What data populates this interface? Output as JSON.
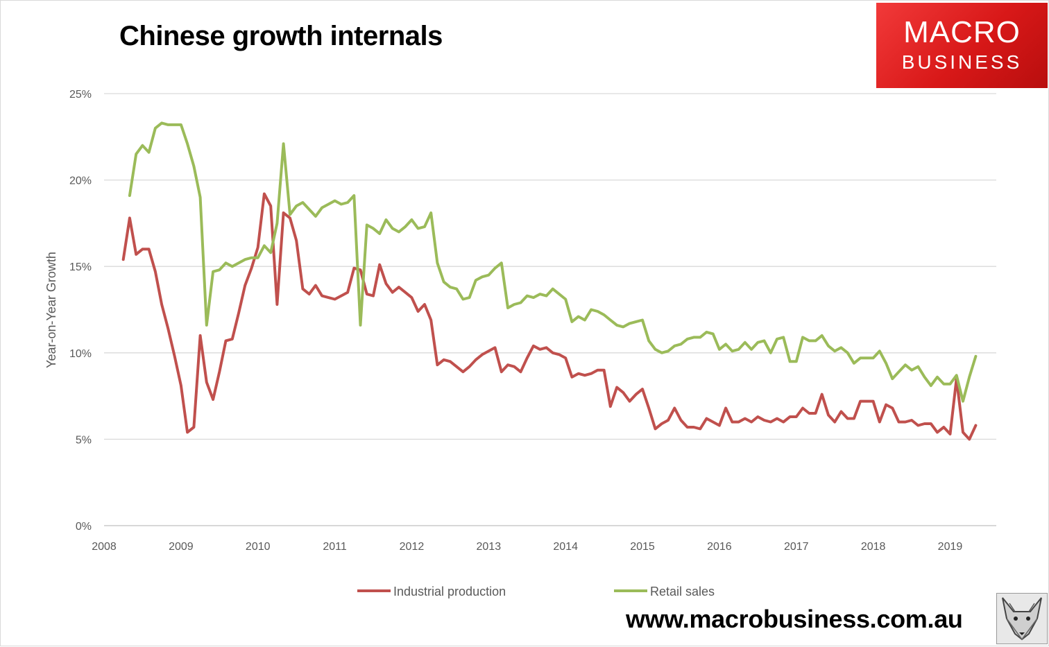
{
  "header": {
    "title": "Chinese growth internals"
  },
  "logo": {
    "line1": "MACRO",
    "line2": "BUSINESS"
  },
  "footer": {
    "website": "www.macrobusiness.com.au"
  },
  "colors": {
    "industrial": "#c0504d",
    "retail": "#9bbb59",
    "grid": "#d9d9d9",
    "text": "#595959"
  },
  "chart_data": {
    "type": "line",
    "title": "Chinese growth internals",
    "xlabel": "",
    "ylabel": "Year-on-Year Growth",
    "xlim": [
      2008,
      2019.6
    ],
    "ylim": [
      0,
      25
    ],
    "x_ticks": [
      2008,
      2009,
      2010,
      2011,
      2012,
      2013,
      2014,
      2015,
      2016,
      2017,
      2018,
      2019
    ],
    "y_ticks": [
      0,
      5,
      10,
      15,
      20,
      25
    ],
    "y_tick_labels": [
      "0%",
      "5%",
      "10%",
      "15%",
      "20%",
      "25%"
    ],
    "grid": "horizontal",
    "legend_position": "bottom",
    "series": [
      {
        "name": "Industrial production",
        "color": "#c0504d",
        "points": [
          [
            2008.25,
            15.4
          ],
          [
            2008.333,
            17.8
          ],
          [
            2008.417,
            15.7
          ],
          [
            2008.5,
            16.0
          ],
          [
            2008.583,
            16.0
          ],
          [
            2008.667,
            14.7
          ],
          [
            2008.75,
            12.8
          ],
          [
            2008.833,
            11.4
          ],
          [
            2008.917,
            9.8
          ],
          [
            2009.0,
            8.1
          ],
          [
            2009.083,
            5.4
          ],
          [
            2009.167,
            5.7
          ],
          [
            2009.25,
            11.0
          ],
          [
            2009.333,
            8.3
          ],
          [
            2009.417,
            7.3
          ],
          [
            2009.5,
            8.9
          ],
          [
            2009.583,
            10.7
          ],
          [
            2009.667,
            10.8
          ],
          [
            2009.75,
            12.3
          ],
          [
            2009.833,
            13.9
          ],
          [
            2009.917,
            14.9
          ],
          [
            2010.0,
            16.1
          ],
          [
            2010.083,
            19.2
          ],
          [
            2010.167,
            18.5
          ],
          [
            2010.25,
            12.8
          ],
          [
            2010.333,
            18.1
          ],
          [
            2010.417,
            17.8
          ],
          [
            2010.5,
            16.5
          ],
          [
            2010.583,
            13.7
          ],
          [
            2010.667,
            13.4
          ],
          [
            2010.75,
            13.9
          ],
          [
            2010.833,
            13.3
          ],
          [
            2010.917,
            13.2
          ],
          [
            2011.0,
            13.1
          ],
          [
            2011.083,
            13.3
          ],
          [
            2011.167,
            13.5
          ],
          [
            2011.25,
            14.9
          ],
          [
            2011.333,
            14.8
          ],
          [
            2011.417,
            13.4
          ],
          [
            2011.5,
            13.3
          ],
          [
            2011.583,
            15.1
          ],
          [
            2011.667,
            14.0
          ],
          [
            2011.75,
            13.5
          ],
          [
            2011.833,
            13.8
          ],
          [
            2011.917,
            13.5
          ],
          [
            2012.0,
            13.2
          ],
          [
            2012.083,
            12.4
          ],
          [
            2012.167,
            12.8
          ],
          [
            2012.25,
            11.9
          ],
          [
            2012.333,
            9.3
          ],
          [
            2012.417,
            9.6
          ],
          [
            2012.5,
            9.5
          ],
          [
            2012.583,
            9.2
          ],
          [
            2012.667,
            8.9
          ],
          [
            2012.75,
            9.2
          ],
          [
            2012.833,
            9.6
          ],
          [
            2012.917,
            9.9
          ],
          [
            2013.0,
            10.1
          ],
          [
            2013.083,
            10.3
          ],
          [
            2013.167,
            8.9
          ],
          [
            2013.25,
            9.3
          ],
          [
            2013.333,
            9.2
          ],
          [
            2013.417,
            8.9
          ],
          [
            2013.5,
            9.7
          ],
          [
            2013.583,
            10.4
          ],
          [
            2013.667,
            10.2
          ],
          [
            2013.75,
            10.3
          ],
          [
            2013.833,
            10.0
          ],
          [
            2013.917,
            9.9
          ],
          [
            2014.0,
            9.7
          ],
          [
            2014.083,
            8.6
          ],
          [
            2014.167,
            8.8
          ],
          [
            2014.25,
            8.7
          ],
          [
            2014.333,
            8.8
          ],
          [
            2014.417,
            9.0
          ],
          [
            2014.5,
            9.0
          ],
          [
            2014.583,
            6.9
          ],
          [
            2014.667,
            8.0
          ],
          [
            2014.75,
            7.7
          ],
          [
            2014.833,
            7.2
          ],
          [
            2014.917,
            7.6
          ],
          [
            2015.0,
            7.9
          ],
          [
            2015.083,
            6.8
          ],
          [
            2015.167,
            5.6
          ],
          [
            2015.25,
            5.9
          ],
          [
            2015.333,
            6.1
          ],
          [
            2015.417,
            6.8
          ],
          [
            2015.5,
            6.1
          ],
          [
            2015.583,
            5.7
          ],
          [
            2015.667,
            5.7
          ],
          [
            2015.75,
            5.6
          ],
          [
            2015.833,
            6.2
          ],
          [
            2015.917,
            6.0
          ],
          [
            2016.0,
            5.8
          ],
          [
            2016.083,
            6.8
          ],
          [
            2016.167,
            6.0
          ],
          [
            2016.25,
            6.0
          ],
          [
            2016.333,
            6.2
          ],
          [
            2016.417,
            6.0
          ],
          [
            2016.5,
            6.3
          ],
          [
            2016.583,
            6.1
          ],
          [
            2016.667,
            6.0
          ],
          [
            2016.75,
            6.2
          ],
          [
            2016.833,
            6.0
          ],
          [
            2016.917,
            6.3
          ],
          [
            2017.0,
            6.3
          ],
          [
            2017.083,
            6.8
          ],
          [
            2017.167,
            6.5
          ],
          [
            2017.25,
            6.5
          ],
          [
            2017.333,
            7.6
          ],
          [
            2017.417,
            6.4
          ],
          [
            2017.5,
            6.0
          ],
          [
            2017.583,
            6.6
          ],
          [
            2017.667,
            6.2
          ],
          [
            2017.75,
            6.2
          ],
          [
            2017.833,
            7.2
          ],
          [
            2017.917,
            7.2
          ],
          [
            2018.0,
            7.2
          ],
          [
            2018.083,
            6.0
          ],
          [
            2018.167,
            7.0
          ],
          [
            2018.25,
            6.8
          ],
          [
            2018.333,
            6.0
          ],
          [
            2018.417,
            6.0
          ],
          [
            2018.5,
            6.1
          ],
          [
            2018.583,
            5.8
          ],
          [
            2018.667,
            5.9
          ],
          [
            2018.75,
            5.9
          ],
          [
            2018.833,
            5.4
          ],
          [
            2018.917,
            5.7
          ],
          [
            2019.0,
            5.3
          ],
          [
            2019.083,
            8.5
          ],
          [
            2019.167,
            5.4
          ],
          [
            2019.25,
            5.0
          ],
          [
            2019.333,
            5.8
          ]
        ]
      },
      {
        "name": "Retail sales",
        "color": "#9bbb59",
        "points": [
          [
            2008.333,
            19.1
          ],
          [
            2008.417,
            21.5
          ],
          [
            2008.5,
            22.0
          ],
          [
            2008.583,
            21.6
          ],
          [
            2008.667,
            23.0
          ],
          [
            2008.75,
            23.3
          ],
          [
            2008.833,
            23.2
          ],
          [
            2008.917,
            23.2
          ],
          [
            2009.0,
            23.2
          ],
          [
            2009.083,
            22.1
          ],
          [
            2009.167,
            20.8
          ],
          [
            2009.25,
            19.0
          ],
          [
            2009.333,
            11.6
          ],
          [
            2009.417,
            14.7
          ],
          [
            2009.5,
            14.8
          ],
          [
            2009.583,
            15.2
          ],
          [
            2009.667,
            15.0
          ],
          [
            2009.75,
            15.2
          ],
          [
            2009.833,
            15.4
          ],
          [
            2009.917,
            15.5
          ],
          [
            2010.0,
            15.5
          ],
          [
            2010.083,
            16.2
          ],
          [
            2010.167,
            15.8
          ],
          [
            2010.25,
            17.5
          ],
          [
            2010.333,
            22.1
          ],
          [
            2010.417,
            18.0
          ],
          [
            2010.5,
            18.5
          ],
          [
            2010.583,
            18.7
          ],
          [
            2010.667,
            18.3
          ],
          [
            2010.75,
            17.9
          ],
          [
            2010.833,
            18.4
          ],
          [
            2010.917,
            18.6
          ],
          [
            2011.0,
            18.8
          ],
          [
            2011.083,
            18.6
          ],
          [
            2011.167,
            18.7
          ],
          [
            2011.25,
            19.1
          ],
          [
            2011.333,
            11.6
          ],
          [
            2011.417,
            17.4
          ],
          [
            2011.5,
            17.2
          ],
          [
            2011.583,
            16.9
          ],
          [
            2011.667,
            17.7
          ],
          [
            2011.75,
            17.2
          ],
          [
            2011.833,
            17.0
          ],
          [
            2011.917,
            17.3
          ],
          [
            2012.0,
            17.7
          ],
          [
            2012.083,
            17.2
          ],
          [
            2012.167,
            17.3
          ],
          [
            2012.25,
            18.1
          ],
          [
            2012.333,
            15.2
          ],
          [
            2012.417,
            14.1
          ],
          [
            2012.5,
            13.8
          ],
          [
            2012.583,
            13.7
          ],
          [
            2012.667,
            13.1
          ],
          [
            2012.75,
            13.2
          ],
          [
            2012.833,
            14.2
          ],
          [
            2012.917,
            14.4
          ],
          [
            2013.0,
            14.5
          ],
          [
            2013.083,
            14.9
          ],
          [
            2013.167,
            15.2
          ],
          [
            2013.25,
            12.6
          ],
          [
            2013.333,
            12.8
          ],
          [
            2013.417,
            12.9
          ],
          [
            2013.5,
            13.3
          ],
          [
            2013.583,
            13.2
          ],
          [
            2013.667,
            13.4
          ],
          [
            2013.75,
            13.3
          ],
          [
            2013.833,
            13.7
          ],
          [
            2013.917,
            13.4
          ],
          [
            2014.0,
            13.1
          ],
          [
            2014.083,
            11.8
          ],
          [
            2014.167,
            12.1
          ],
          [
            2014.25,
            11.9
          ],
          [
            2014.333,
            12.5
          ],
          [
            2014.417,
            12.4
          ],
          [
            2014.5,
            12.2
          ],
          [
            2014.583,
            11.9
          ],
          [
            2014.667,
            11.6
          ],
          [
            2014.75,
            11.5
          ],
          [
            2014.833,
            11.7
          ],
          [
            2014.917,
            11.8
          ],
          [
            2015.0,
            11.9
          ],
          [
            2015.083,
            10.7
          ],
          [
            2015.167,
            10.2
          ],
          [
            2015.25,
            10.0
          ],
          [
            2015.333,
            10.1
          ],
          [
            2015.417,
            10.4
          ],
          [
            2015.5,
            10.5
          ],
          [
            2015.583,
            10.8
          ],
          [
            2015.667,
            10.9
          ],
          [
            2015.75,
            10.9
          ],
          [
            2015.833,
            11.2
          ],
          [
            2015.917,
            11.1
          ],
          [
            2016.0,
            10.2
          ],
          [
            2016.083,
            10.5
          ],
          [
            2016.167,
            10.1
          ],
          [
            2016.25,
            10.2
          ],
          [
            2016.333,
            10.6
          ],
          [
            2016.417,
            10.2
          ],
          [
            2016.5,
            10.6
          ],
          [
            2016.583,
            10.7
          ],
          [
            2016.667,
            10.0
          ],
          [
            2016.75,
            10.8
          ],
          [
            2016.833,
            10.9
          ],
          [
            2016.917,
            9.5
          ],
          [
            2017.0,
            9.5
          ],
          [
            2017.083,
            10.9
          ],
          [
            2017.167,
            10.7
          ],
          [
            2017.25,
            10.7
          ],
          [
            2017.333,
            11.0
          ],
          [
            2017.417,
            10.4
          ],
          [
            2017.5,
            10.1
          ],
          [
            2017.583,
            10.3
          ],
          [
            2017.667,
            10.0
          ],
          [
            2017.75,
            9.4
          ],
          [
            2017.833,
            9.7
          ],
          [
            2017.917,
            9.7
          ],
          [
            2018.0,
            9.7
          ],
          [
            2018.083,
            10.1
          ],
          [
            2018.167,
            9.4
          ],
          [
            2018.25,
            8.5
          ],
          [
            2018.333,
            8.9
          ],
          [
            2018.417,
            9.3
          ],
          [
            2018.5,
            9.0
          ],
          [
            2018.583,
            9.2
          ],
          [
            2018.667,
            8.6
          ],
          [
            2018.75,
            8.1
          ],
          [
            2018.833,
            8.6
          ],
          [
            2018.917,
            8.2
          ],
          [
            2019.0,
            8.2
          ],
          [
            2019.083,
            8.7
          ],
          [
            2019.167,
            7.2
          ],
          [
            2019.25,
            8.6
          ],
          [
            2019.333,
            9.8
          ]
        ]
      }
    ]
  }
}
